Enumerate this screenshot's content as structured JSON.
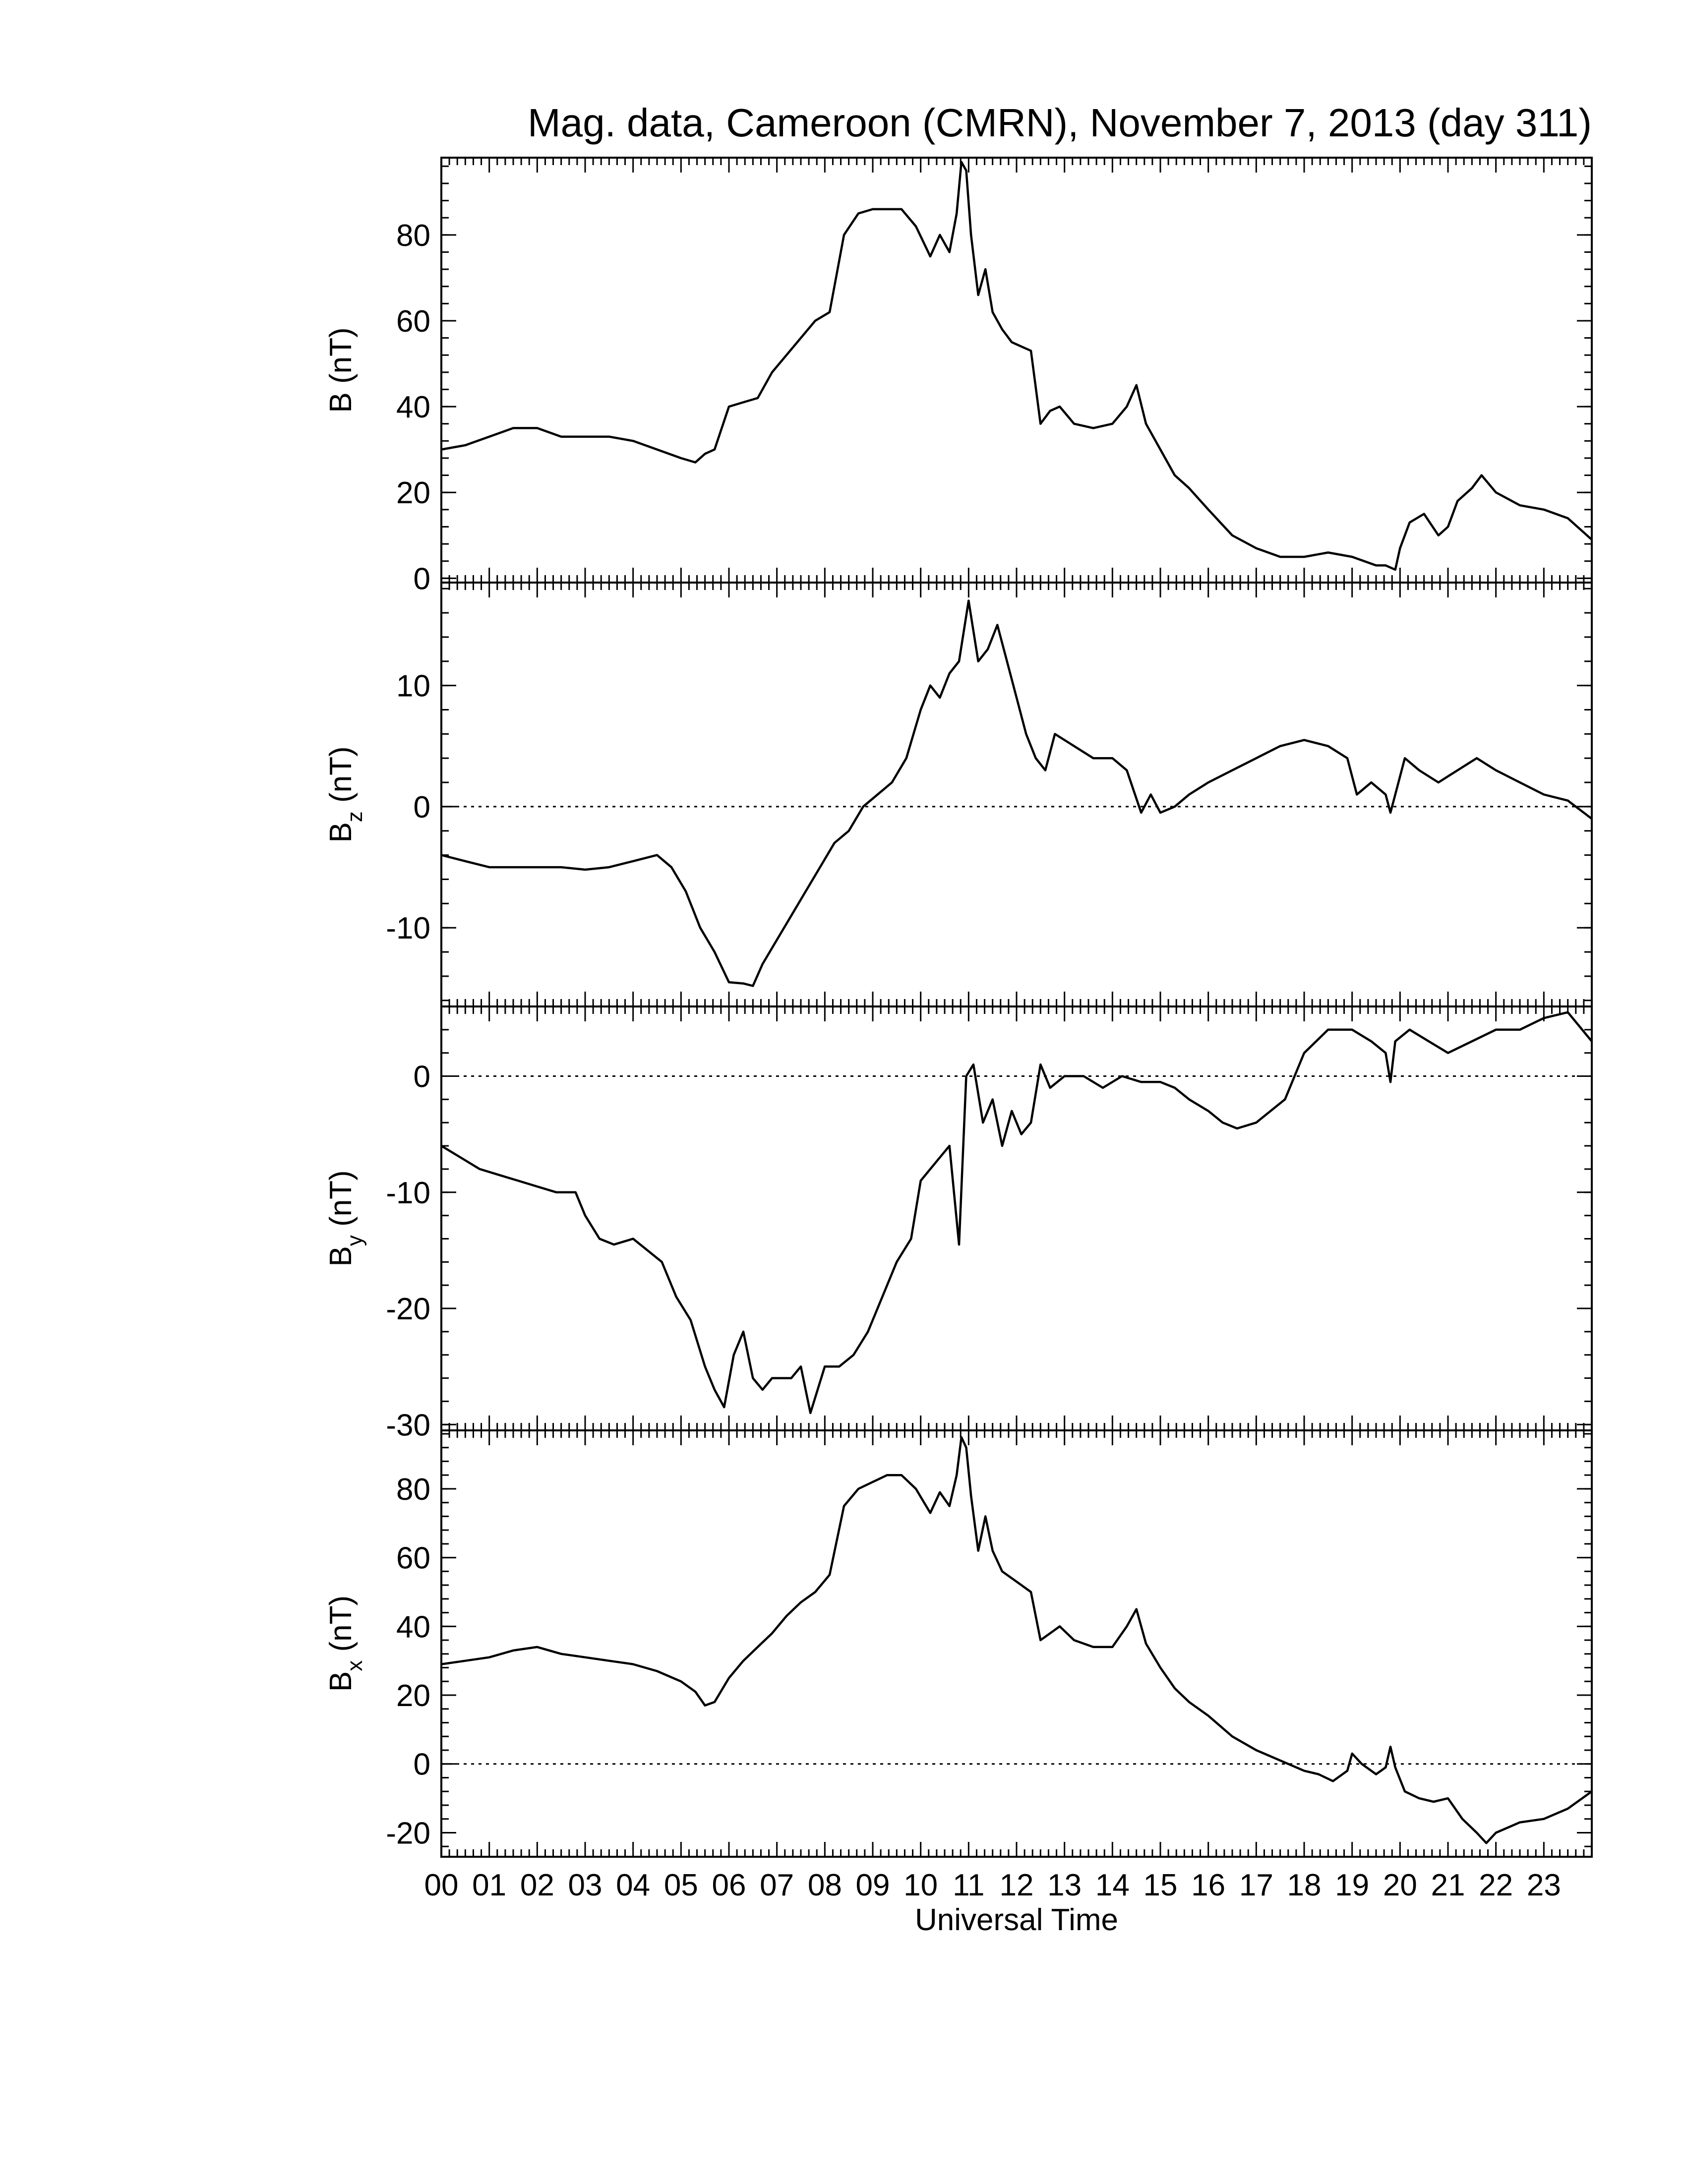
{
  "title": "Mag. data, Cameroon (CMRN), November 7, 2013 (day 311)",
  "xlabel": "Universal Time",
  "x_tick_labels": [
    "00",
    "01",
    "02",
    "03",
    "04",
    "05",
    "06",
    "07",
    "08",
    "09",
    "10",
    "11",
    "12",
    "13",
    "14",
    "15",
    "16",
    "17",
    "18",
    "19",
    "20",
    "21",
    "22",
    "23"
  ],
  "line_color": "#000000",
  "chart_data": [
    {
      "type": "line",
      "panel": "B",
      "ylabel_main": "B",
      "ylabel_sub": "",
      "ylabel_unit": " (nT)",
      "xlim": [
        0,
        24
      ],
      "ylim": [
        -1,
        98
      ],
      "yticks": [
        0,
        20,
        40,
        60,
        80
      ],
      "zero_line": false,
      "x": [
        0,
        0.5,
        1.0,
        1.5,
        2.0,
        2.5,
        3.0,
        3.5,
        4.0,
        4.5,
        5.0,
        5.3,
        5.5,
        5.7,
        6.0,
        6.3,
        6.6,
        6.9,
        7.2,
        7.5,
        7.8,
        8.1,
        8.4,
        8.7,
        9.0,
        9.3,
        9.6,
        9.9,
        10.2,
        10.4,
        10.6,
        10.75,
        10.85,
        10.95,
        11.05,
        11.2,
        11.35,
        11.5,
        11.7,
        11.9,
        12.1,
        12.3,
        12.5,
        12.7,
        12.9,
        13.2,
        13.6,
        14.0,
        14.3,
        14.5,
        14.7,
        15.0,
        15.3,
        15.6,
        16.0,
        16.5,
        17.0,
        17.5,
        18.0,
        18.5,
        19.0,
        19.5,
        19.7,
        19.9,
        20.0,
        20.2,
        20.5,
        20.8,
        21.0,
        21.2,
        21.5,
        21.7,
        22.0,
        22.5,
        23.0,
        23.5,
        24.0
      ],
      "y": [
        30,
        31,
        33,
        35,
        35,
        33,
        33,
        33,
        32,
        30,
        28,
        27,
        29,
        30,
        40,
        41,
        42,
        48,
        52,
        56,
        60,
        62,
        80,
        85,
        86,
        86,
        86,
        82,
        75,
        80,
        76,
        85,
        97,
        95,
        80,
        66,
        72,
        62,
        58,
        55,
        54,
        53,
        36,
        39,
        40,
        36,
        35,
        36,
        40,
        45,
        36,
        30,
        24,
        21,
        16,
        10,
        7,
        5,
        5,
        6,
        5,
        3,
        3,
        2,
        7,
        13,
        15,
        10,
        12,
        18,
        21,
        24,
        20,
        17,
        16,
        14,
        9
      ]
    },
    {
      "type": "line",
      "panel": "Bz",
      "ylabel_main": "B",
      "ylabel_sub": "z",
      "ylabel_unit": " (nT)",
      "xlim": [
        0,
        24
      ],
      "ylim": [
        -16.5,
        18.5
      ],
      "yticks": [
        -10,
        0,
        10
      ],
      "zero_line": true,
      "x": [
        0,
        0.5,
        1.0,
        1.5,
        2.0,
        2.5,
        3.0,
        3.5,
        4.0,
        4.5,
        4.8,
        5.1,
        5.4,
        5.7,
        6.0,
        6.3,
        6.5,
        6.7,
        7.0,
        7.3,
        7.6,
        7.9,
        8.2,
        8.5,
        8.8,
        9.1,
        9.4,
        9.7,
        10.0,
        10.2,
        10.4,
        10.6,
        10.8,
        11.0,
        11.2,
        11.4,
        11.6,
        11.8,
        12.0,
        12.2,
        12.4,
        12.6,
        12.8,
        13.2,
        13.6,
        14.0,
        14.3,
        14.6,
        14.8,
        15.0,
        15.3,
        15.6,
        16.0,
        16.5,
        17.0,
        17.5,
        18.0,
        18.5,
        18.9,
        19.1,
        19.4,
        19.7,
        19.8,
        19.9,
        20.1,
        20.4,
        20.8,
        21.2,
        21.6,
        22.0,
        22.5,
        23.0,
        23.5,
        24.0
      ],
      "y": [
        -4,
        -4.5,
        -5,
        -5,
        -5,
        -5,
        -5.2,
        -5,
        -4.5,
        -4,
        -5,
        -7,
        -10,
        -12,
        -14.5,
        -14.6,
        -14.8,
        -13,
        -11,
        -9,
        -7,
        -5,
        -3,
        -2,
        0,
        1,
        2,
        4,
        8,
        10,
        9,
        11,
        12,
        17,
        12,
        13,
        15,
        12,
        9,
        6,
        4,
        3,
        6,
        5,
        4,
        4,
        3,
        -0.5,
        1,
        -0.5,
        0,
        1,
        2,
        3,
        4,
        5,
        5.5,
        5,
        4,
        1,
        2,
        1,
        -0.5,
        1,
        4,
        3,
        2,
        3,
        4,
        3,
        2,
        1,
        0.5,
        -1
      ]
    },
    {
      "type": "line",
      "panel": "By",
      "ylabel_main": "B",
      "ylabel_sub": "y",
      "ylabel_unit": " (nT)",
      "xlim": [
        0,
        24
      ],
      "ylim": [
        -30.5,
        6
      ],
      "yticks": [
        -30,
        -20,
        -10,
        0
      ],
      "zero_line": true,
      "x": [
        0,
        0.4,
        0.8,
        1.2,
        1.6,
        2.0,
        2.4,
        2.8,
        3.0,
        3.3,
        3.6,
        4.0,
        4.3,
        4.6,
        4.9,
        5.2,
        5.5,
        5.7,
        5.9,
        6.1,
        6.3,
        6.5,
        6.7,
        6.9,
        7.1,
        7.3,
        7.5,
        7.7,
        8.0,
        8.3,
        8.6,
        8.9,
        9.2,
        9.5,
        9.8,
        10.0,
        10.2,
        10.4,
        10.6,
        10.8,
        10.95,
        11.1,
        11.3,
        11.5,
        11.7,
        11.9,
        12.1,
        12.3,
        12.5,
        12.7,
        13.0,
        13.4,
        13.8,
        14.2,
        14.6,
        15.0,
        15.3,
        15.6,
        16.0,
        16.3,
        16.6,
        17.0,
        17.3,
        17.6,
        18.0,
        18.5,
        19.0,
        19.4,
        19.7,
        19.8,
        19.9,
        20.2,
        20.6,
        21.0,
        21.5,
        22.0,
        22.5,
        23.0,
        23.5,
        24.0
      ],
      "y": [
        -6,
        -7,
        -8,
        -8.5,
        -9,
        -9.5,
        -10,
        -10,
        -12,
        -14,
        -14.5,
        -14,
        -15,
        -16,
        -19,
        -21,
        -25,
        -27,
        -28.5,
        -24,
        -22,
        -26,
        -27,
        -26,
        -26,
        -26,
        -25,
        -29,
        -25,
        -25,
        -24,
        -22,
        -19,
        -16,
        -14,
        -9,
        -8,
        -7,
        -6,
        -14.5,
        0,
        1,
        -4,
        -2,
        -6,
        -3,
        -5,
        -4,
        1,
        -1,
        0,
        0,
        -1,
        0,
        -0.5,
        -0.5,
        -1,
        -2,
        -3,
        -4,
        -4.5,
        -4,
        -3,
        -2,
        2,
        4,
        4,
        3,
        2,
        -0.5,
        3,
        4,
        3,
        2,
        3,
        4,
        4,
        5,
        5.5,
        3
      ]
    },
    {
      "type": "line",
      "panel": "Bx",
      "ylabel_main": "B",
      "ylabel_sub": "x",
      "ylabel_unit": " (nT)",
      "xlim": [
        0,
        24
      ],
      "ylim": [
        -27,
        97
      ],
      "yticks": [
        -20,
        0,
        20,
        40,
        60,
        80
      ],
      "zero_line": true,
      "x": [
        0,
        0.5,
        1.0,
        1.5,
        2.0,
        2.5,
        3.0,
        3.5,
        4.0,
        4.5,
        5.0,
        5.3,
        5.5,
        5.7,
        6.0,
        6.3,
        6.6,
        6.9,
        7.2,
        7.5,
        7.8,
        8.1,
        8.4,
        8.7,
        9.0,
        9.3,
        9.6,
        9.9,
        10.2,
        10.4,
        10.6,
        10.75,
        10.85,
        10.95,
        11.05,
        11.2,
        11.35,
        11.5,
        11.7,
        11.9,
        12.1,
        12.3,
        12.5,
        12.7,
        12.9,
        13.2,
        13.6,
        14.0,
        14.3,
        14.5,
        14.7,
        15.0,
        15.3,
        15.6,
        16.0,
        16.5,
        17.0,
        17.5,
        18.0,
        18.3,
        18.6,
        18.9,
        19.0,
        19.2,
        19.5,
        19.7,
        19.8,
        19.9,
        20.1,
        20.4,
        20.7,
        21.0,
        21.3,
        21.6,
        21.8,
        22.0,
        22.5,
        23.0,
        23.5,
        24.0
      ],
      "y": [
        29,
        30,
        31,
        33,
        34,
        32,
        31,
        30,
        29,
        27,
        24,
        21,
        17,
        18,
        25,
        30,
        34,
        38,
        43,
        47,
        50,
        55,
        75,
        80,
        82,
        84,
        84,
        80,
        73,
        79,
        75,
        84,
        95,
        92,
        78,
        62,
        72,
        62,
        56,
        54,
        52,
        50,
        36,
        38,
        40,
        36,
        34,
        34,
        40,
        45,
        35,
        28,
        22,
        18,
        14,
        8,
        4,
        1,
        -2,
        -3,
        -5,
        -2,
        3,
        0,
        -3,
        -1,
        5,
        -1,
        -8,
        -10,
        -11,
        -10,
        -16,
        -20,
        -23,
        -20,
        -17,
        -16,
        -13,
        -8
      ]
    }
  ]
}
